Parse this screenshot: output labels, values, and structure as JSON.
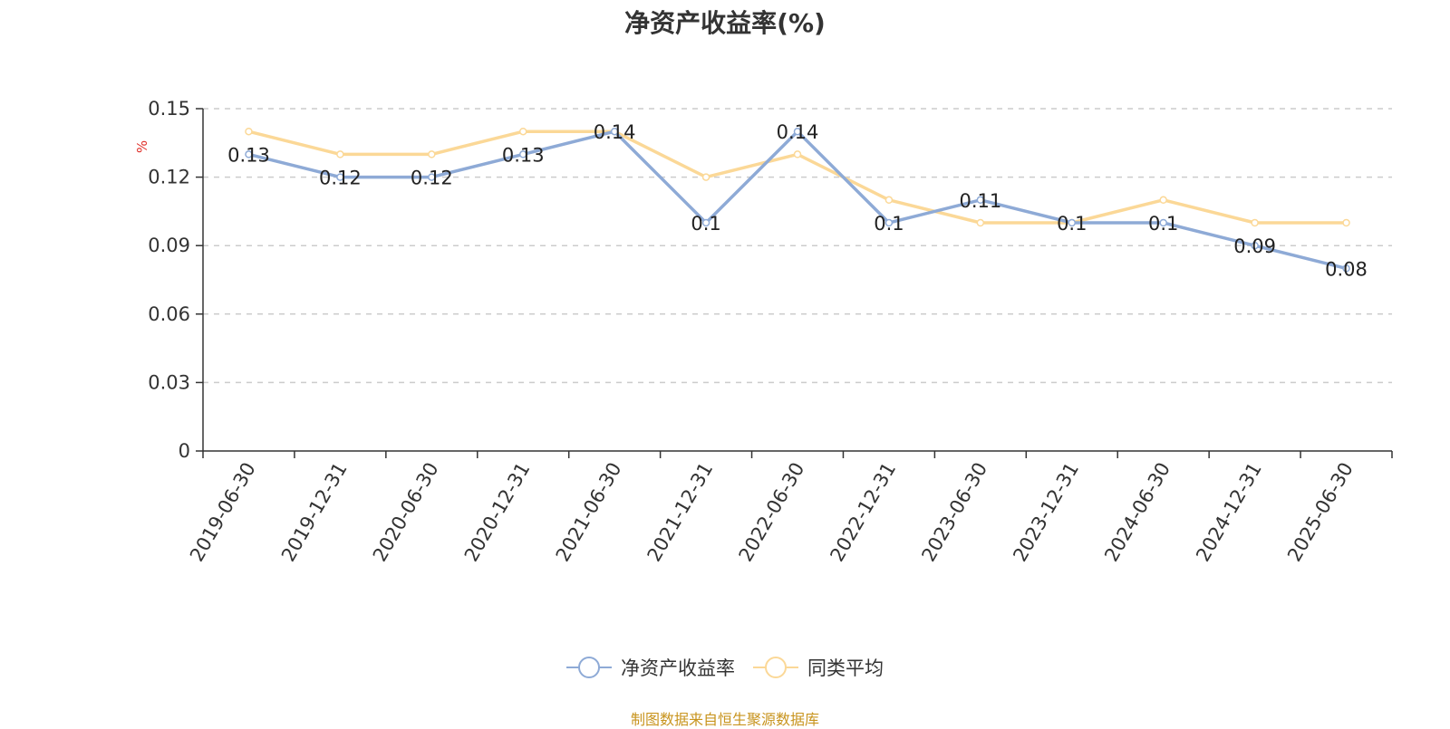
{
  "chart_data": {
    "type": "line",
    "title": "净资产收益率(%)",
    "ylabel": "%",
    "xlabel": "",
    "ylim": [
      0,
      0.15
    ],
    "yticks": [
      "0",
      "0.03",
      "0.06",
      "0.09",
      "0.12",
      "0.15"
    ],
    "y_tick_values": [
      0,
      0.03,
      0.06,
      0.09,
      0.12,
      0.15
    ],
    "grid": true,
    "legend_position": "bottom",
    "categories": [
      "2019-06-30",
      "2019-12-31",
      "2020-06-30",
      "2020-12-31",
      "2021-06-30",
      "2021-12-31",
      "2022-06-30",
      "2022-12-31",
      "2023-06-30",
      "2023-12-31",
      "2024-06-30",
      "2024-12-31",
      "2025-06-30"
    ],
    "series": [
      {
        "name": "净资产收益率",
        "color": "#8eaad6",
        "values": [
          0.13,
          0.12,
          0.12,
          0.13,
          0.14,
          0.1,
          0.14,
          0.1,
          0.11,
          0.1,
          0.1,
          0.09,
          0.08
        ],
        "labels": [
          "0.13",
          "0.12",
          "0.12",
          "0.13",
          "0.14",
          "0.1",
          "0.14",
          "0.1",
          "0.11",
          "0.1",
          "0.1",
          "0.09",
          "0.08"
        ]
      },
      {
        "name": "同类平均",
        "color": "#fbd897",
        "values": [
          0.14,
          0.13,
          0.13,
          0.14,
          0.14,
          0.12,
          0.13,
          0.11,
          0.1,
          0.1,
          0.11,
          0.1,
          0.1
        ]
      }
    ],
    "source": "制图数据来自恒生聚源数据库"
  }
}
